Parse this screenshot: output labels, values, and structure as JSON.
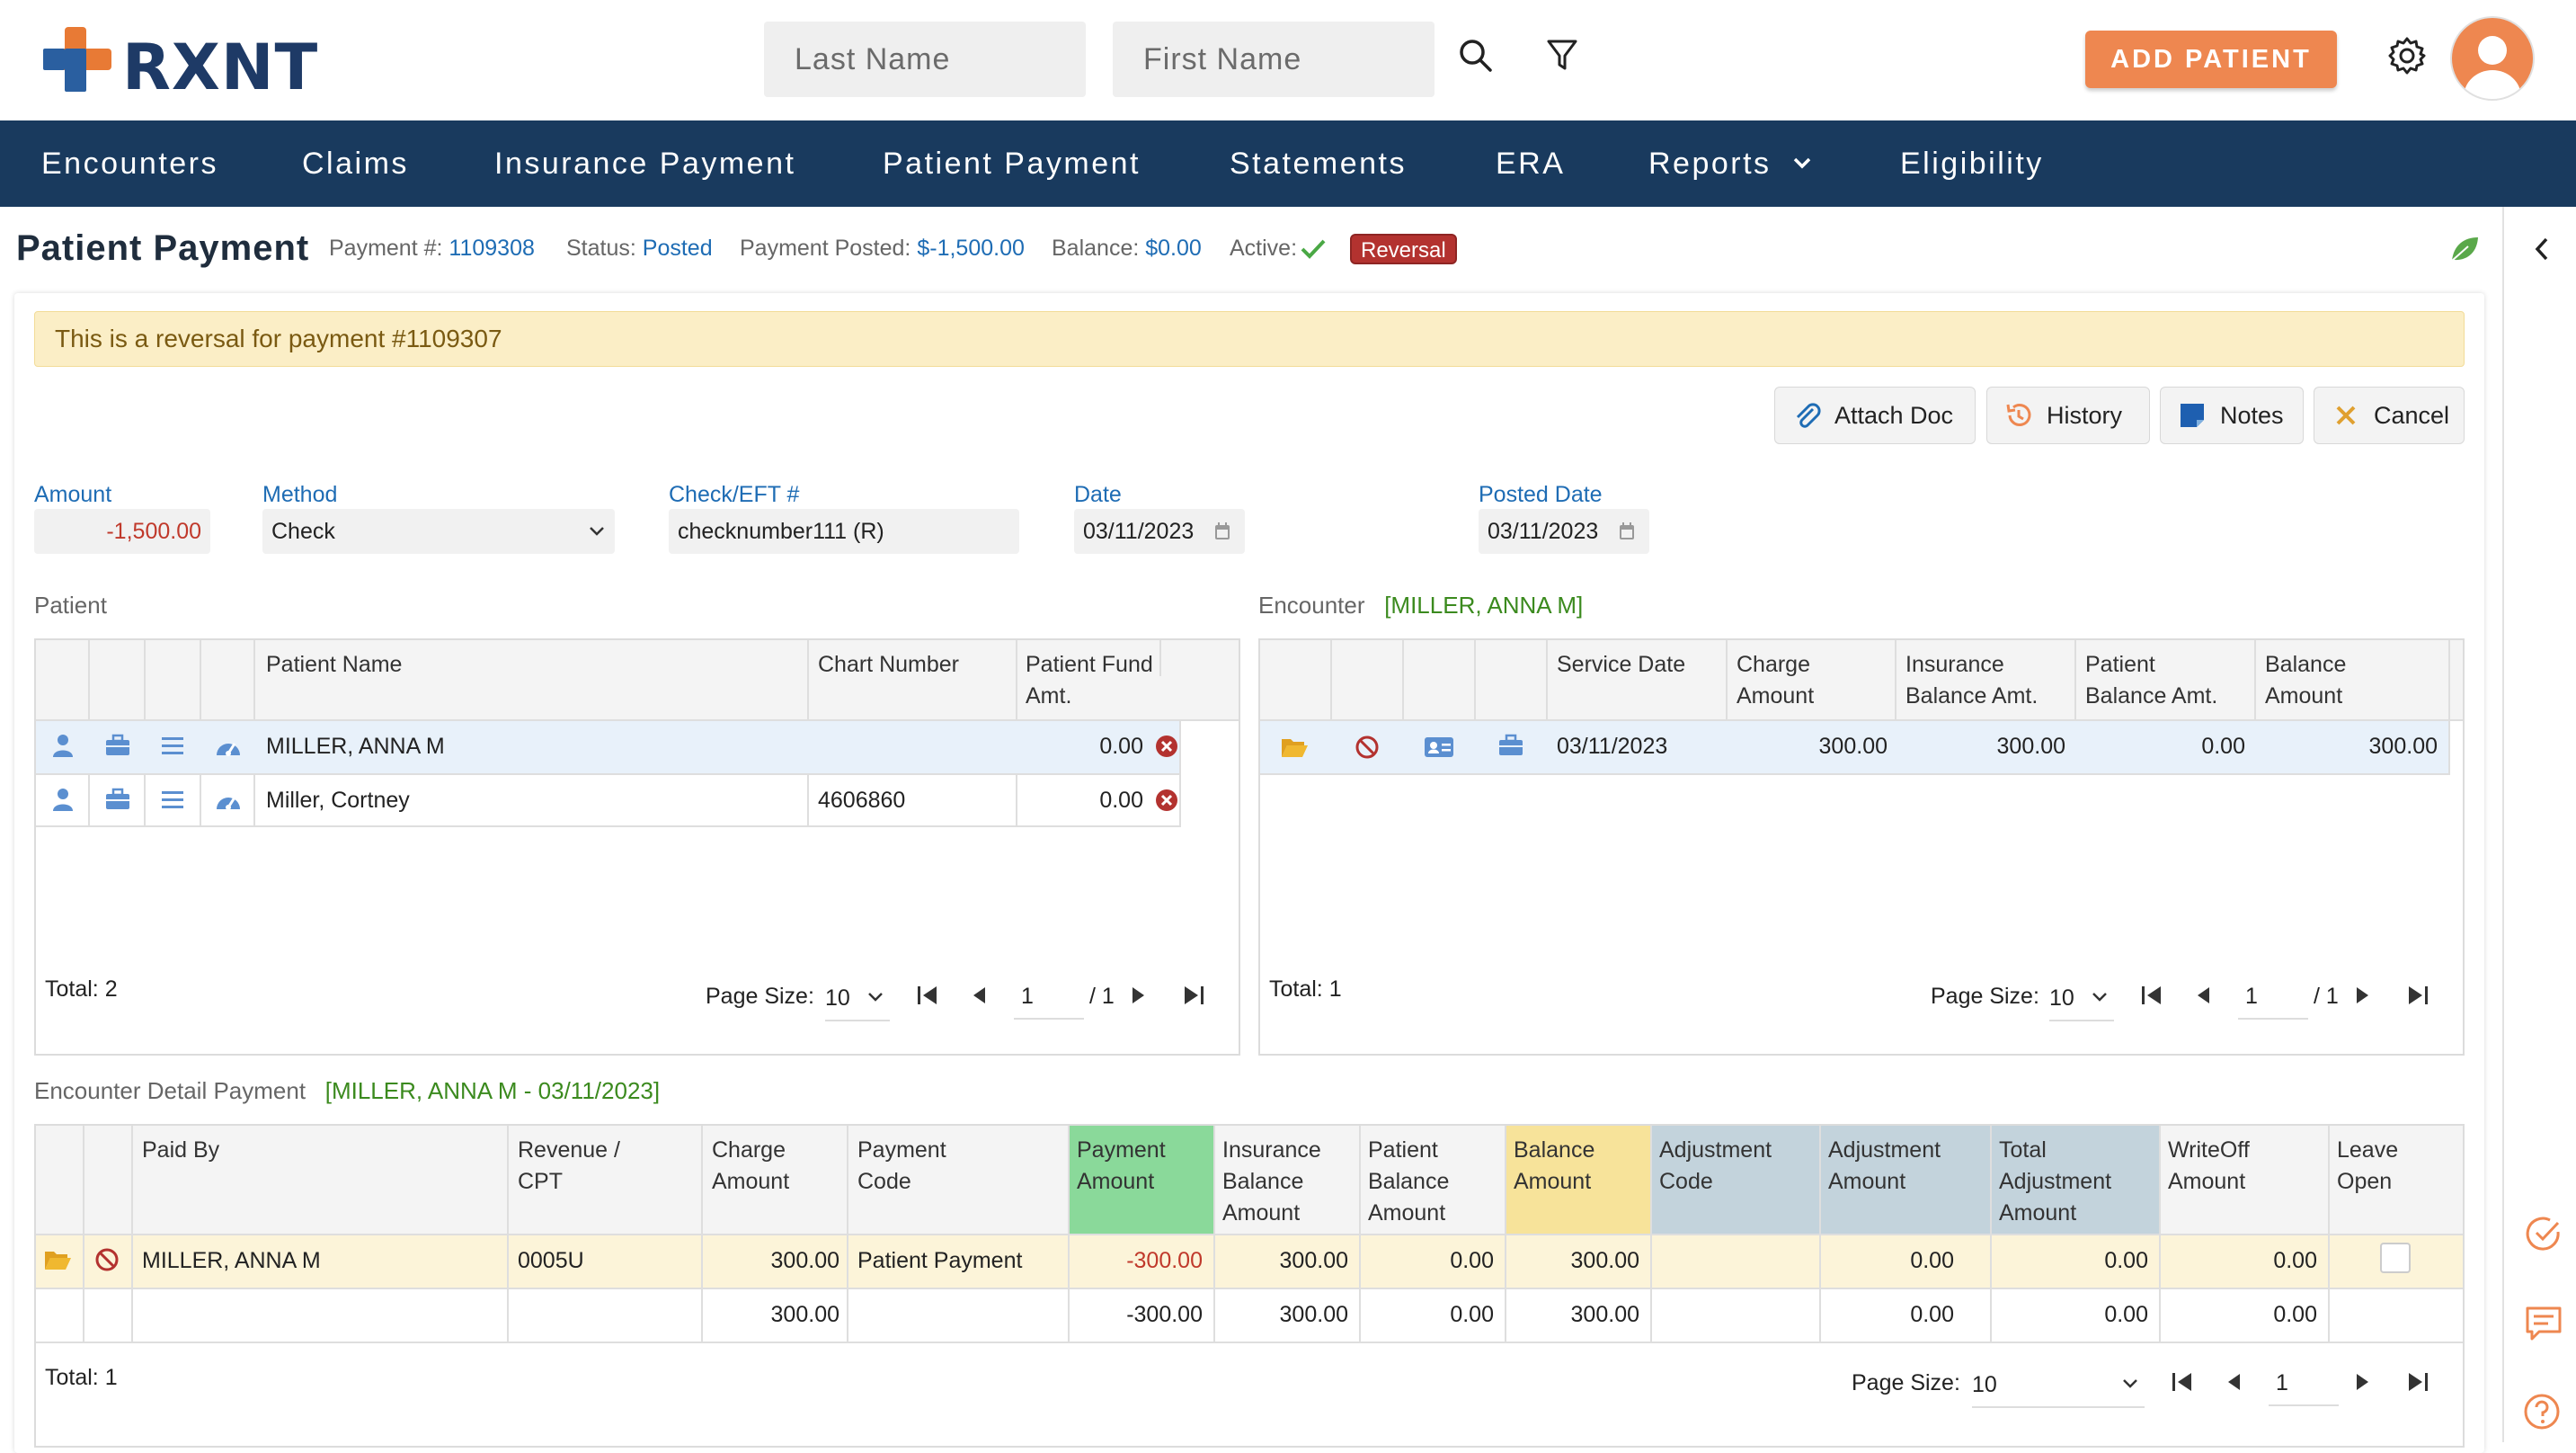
{
  "header": {
    "logo_text": "RXNT",
    "last_name_placeholder": "Last Name",
    "first_name_placeholder": "First Name",
    "add_patient_label": "ADD PATIENT"
  },
  "nav": {
    "items": [
      "Encounters",
      "Claims",
      "Insurance Payment",
      "Patient Payment",
      "Statements",
      "ERA",
      "Reports",
      "Eligibility"
    ]
  },
  "page": {
    "title": "Patient Payment",
    "payment_label": "Payment #:",
    "payment_number": "1109308",
    "status_label": "Status:",
    "status_value": "Posted",
    "posted_label": "Payment Posted:",
    "posted_value": "$-1,500.00",
    "balance_label": "Balance:",
    "balance_value": "$0.00",
    "active_label": "Active:",
    "reversal_tag": "Reversal",
    "alert": "This is a reversal for payment #1109307"
  },
  "toolbar": {
    "attach_doc": "Attach Doc",
    "history": "History",
    "notes": "Notes",
    "cancel": "Cancel"
  },
  "form": {
    "amount_label": "Amount",
    "amount_value": "-1,500.00",
    "method_label": "Method",
    "method_value": "Check",
    "check_label": "Check/EFT #",
    "check_value": "checknumber111 (R)",
    "date_label": "Date",
    "date_value": "03/11/2023",
    "posted_date_label": "Posted Date",
    "posted_date_value": "03/11/2023"
  },
  "patient_table": {
    "section_label": "Patient",
    "headers": [
      "Patient Name",
      "Chart Number",
      "Patient Fund Amt."
    ],
    "rows": [
      {
        "name": "MILLER, ANNA M",
        "chart": "",
        "fund": "0.00"
      },
      {
        "name": "Miller, Cortney",
        "chart": "4606860",
        "fund": "0.00"
      }
    ],
    "total": "Total: 2",
    "page_size_label": "Page Size:",
    "page_size": "10",
    "page": "1",
    "page_of": "/ 1"
  },
  "encounter_table": {
    "section_label": "Encounter",
    "section_sub": "[MILLER, ANNA M]",
    "headers": [
      "Service Date",
      "Charge Amount",
      "Insurance Balance Amt.",
      "Patient Balance Amt.",
      "Balance Amount"
    ],
    "rows": [
      {
        "service_date": "03/11/2023",
        "charge": "300.00",
        "ins_bal": "300.00",
        "pat_bal": "0.00",
        "balance": "300.00"
      }
    ],
    "total": "Total: 1",
    "page_size_label": "Page Size:",
    "page_size": "10",
    "page": "1",
    "page_of": "/ 1"
  },
  "detail_table": {
    "section_label": "Encounter Detail Payment",
    "section_sub": "[MILLER, ANNA M - 03/11/2023]",
    "headers": [
      "Paid By",
      "Revenue / CPT",
      "Charge Amount",
      "Payment Code",
      "Payment Amount",
      "Insurance Balance Amount",
      "Patient Balance Amount",
      "Balance Amount",
      "Adjustment Code",
      "Adjustment Amount",
      "Total Adjustment Amount",
      "WriteOff Amount",
      "Leave Open"
    ],
    "row": {
      "paid_by": "MILLER, ANNA M",
      "cpt": "0005U",
      "charge": "300.00",
      "code": "Patient Payment",
      "payment": "-300.00",
      "ins_bal": "300.00",
      "pat_bal": "0.00",
      "balance": "300.00",
      "adj_code": "",
      "adj_amt": "0.00",
      "total_adj": "0.00",
      "writeoff": "0.00"
    },
    "totals": {
      "charge": "300.00",
      "payment": "-300.00",
      "ins_bal": "300.00",
      "pat_bal": "0.00",
      "balance": "300.00",
      "adj_amt": "0.00",
      "total_adj": "0.00",
      "writeoff": "0.00"
    },
    "total": "Total: 1",
    "page_size_label": "Page Size:",
    "page_size": "10",
    "page": "1"
  },
  "colors": {
    "navy": "#193a5e",
    "orange": "#ee8750",
    "link_blue": "#1e6cb4",
    "green_header": "#8ad99a",
    "yellow_header": "#f7e39a",
    "blue_header": "#c3d3dc",
    "reversal_red": "#b3322f"
  },
  "icons": [
    "search-icon",
    "filter-icon",
    "gear-icon",
    "user-avatar",
    "attach-icon",
    "history-icon",
    "notes-icon",
    "cancel-icon",
    "calendar-icon",
    "person-icon",
    "briefcase-icon",
    "list-icon",
    "dashboard-icon",
    "remove-icon",
    "folder-icon",
    "block-icon",
    "id-card-icon",
    "check-circle-icon",
    "chat-icon",
    "help-icon",
    "chevron-left-icon",
    "leaf-icon"
  ]
}
